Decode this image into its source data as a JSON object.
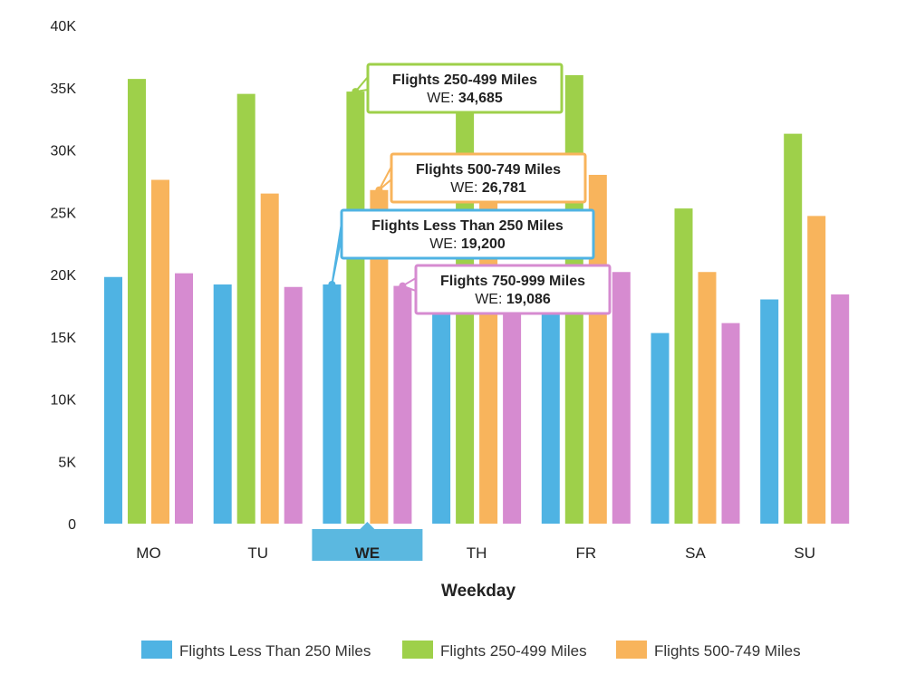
{
  "chart_data": {
    "type": "bar",
    "xlabel": "Weekday",
    "ylabel": "",
    "categories": [
      "MO",
      "TU",
      "WE",
      "TH",
      "FR",
      "SA",
      "SU"
    ],
    "y_ticks": [
      "0",
      "5K",
      "10K",
      "15K",
      "20K",
      "25K",
      "30K",
      "35K",
      "40K"
    ],
    "ylim": [
      0,
      40000
    ],
    "grid": false,
    "legend": "bottom",
    "highlighted_category": "WE",
    "highlight_color": "#5bb8e0",
    "series": [
      {
        "name": "Flights Less Than 250 Miles",
        "color": "#4fb3e3",
        "values": [
          19800,
          19200,
          19200,
          18000,
          17600,
          15300,
          18000
        ]
      },
      {
        "name": "Flights 250-499 Miles",
        "color": "#9ed04a",
        "values": [
          35700,
          34500,
          34685,
          33000,
          36000,
          25300,
          31300
        ]
      },
      {
        "name": "Flights 500-749 Miles",
        "color": "#f8b45c",
        "values": [
          27600,
          26500,
          26781,
          26000,
          28000,
          20200,
          24700
        ]
      },
      {
        "name": "Flights 750-999 Miles",
        "color": "#d68bd0",
        "values": [
          20100,
          19000,
          19086,
          18500,
          20200,
          16100,
          18400
        ]
      }
    ],
    "tooltips": [
      {
        "series": 1,
        "title": "Flights 250-499 Miles",
        "prefix": "WE: ",
        "value": "34,685",
        "border": "#9ed04a"
      },
      {
        "series": 2,
        "title": "Flights 500-749 Miles",
        "prefix": "WE: ",
        "value": "26,781",
        "border": "#f8b45c"
      },
      {
        "series": 0,
        "title": "Flights Less Than 250 Miles",
        "prefix": "WE: ",
        "value": "19,200",
        "border": "#4fb3e3"
      },
      {
        "series": 3,
        "title": "Flights 750-999 Miles",
        "prefix": "WE: ",
        "value": "19,086",
        "border": "#d68bd0"
      }
    ],
    "legend_entries": [
      "Flights Less Than 250 Miles",
      "Flights 250-499 Miles",
      "Flights 500-749 Miles"
    ]
  }
}
